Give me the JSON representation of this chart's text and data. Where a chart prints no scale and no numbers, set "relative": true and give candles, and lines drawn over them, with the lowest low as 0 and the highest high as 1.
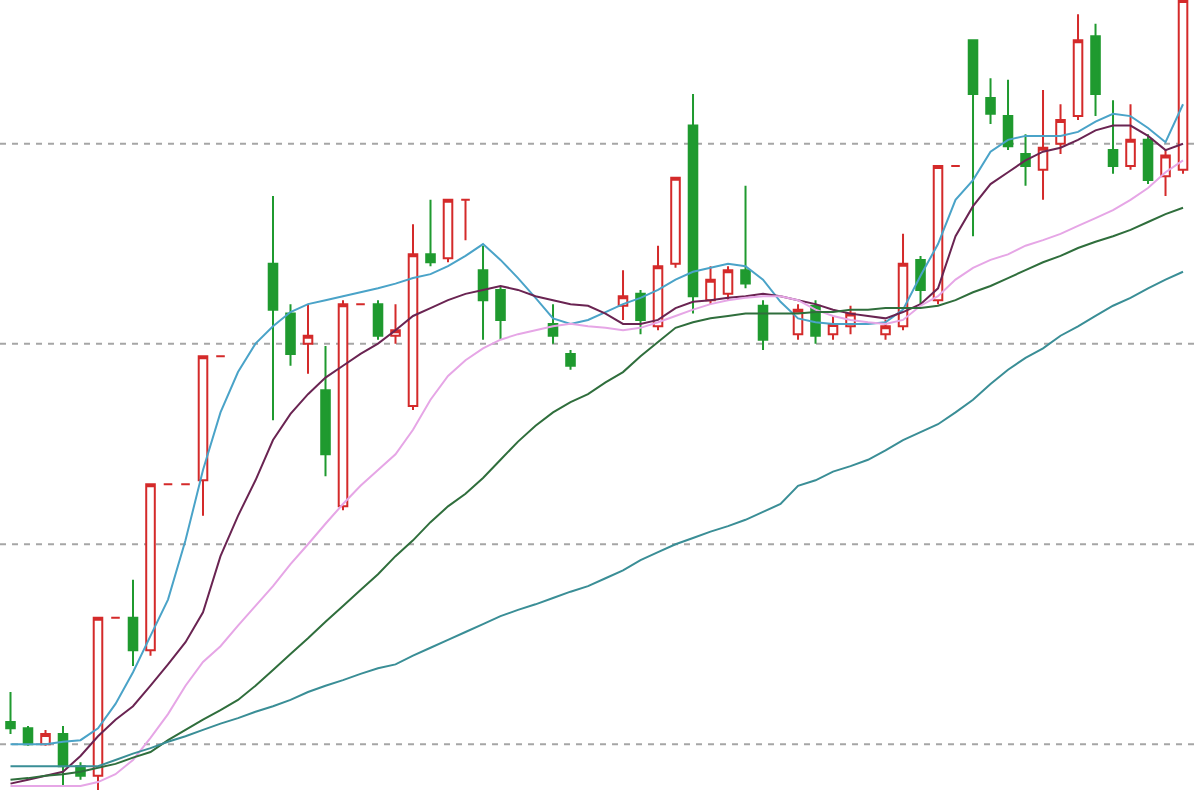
{
  "chart_data": {
    "type": "candlestick",
    "relative": true,
    "categories": [
      null,
      null,
      null,
      null,
      null,
      null,
      null,
      null,
      null,
      null,
      null,
      null,
      null,
      null,
      null,
      null,
      null,
      null,
      null,
      null,
      null,
      null,
      null,
      null,
      null,
      null,
      null,
      null,
      null,
      null,
      null,
      null,
      null,
      null,
      null,
      null,
      null,
      null,
      null,
      null,
      null,
      null,
      null,
      null,
      null,
      null,
      null,
      null,
      null,
      null,
      null,
      null,
      null,
      null,
      null,
      null,
      null,
      null,
      null,
      null,
      null,
      null,
      null,
      null,
      null,
      null,
      null,
      null
    ],
    "ohlc": [
      [
        0.086,
        0.124,
        0.071,
        0.078
      ],
      [
        0.078,
        0.081,
        0.056,
        0.058
      ],
      [
        0.058,
        0.076,
        0.056,
        0.071
      ],
      [
        0.071,
        0.081,
        0.005,
        0.03
      ],
      [
        0.03,
        0.035,
        0.013,
        0.018
      ],
      [
        0.018,
        0.218,
        0,
        0.218
      ],
      [
        0.218,
        0.218,
        0.218,
        0.218
      ],
      [
        0.218,
        0.266,
        0.157,
        0.177
      ],
      [
        0.177,
        0.387,
        0.17,
        0.387
      ],
      [
        0.387,
        0.387,
        0.387,
        0.387
      ],
      [
        0.387,
        0.387,
        0.387,
        0.387
      ],
      [
        0.392,
        0.549,
        0.347,
        0.549
      ],
      [
        0.549,
        0.549,
        0.549,
        0.549
      ],
      [
        null,
        null,
        null,
        null
      ],
      [
        null,
        null,
        null,
        null
      ],
      [
        0.666,
        0.752,
        0.468,
        0.608
      ],
      [
        0.603,
        0.615,
        0.537,
        0.552
      ],
      [
        0.565,
        0.615,
        0.527,
        0.575
      ],
      [
        0.506,
        0.562,
        0.397,
        0.425
      ],
      [
        0.359,
        0.62,
        0.354,
        0.615
      ],
      [
        0.615,
        0.615,
        0.615,
        0.615
      ],
      [
        0.615,
        0.62,
        0.57,
        0.575
      ],
      [
        0.575,
        0.615,
        0.565,
        0.582
      ],
      [
        0.486,
        0.716,
        0.481,
        0.678
      ],
      [
        0.678,
        0.747,
        0.663,
        0.668
      ],
      [
        0.673,
        0.747,
        0.668,
        0.747
      ],
      [
        0.747,
        0.747,
        0.696,
        0.747
      ],
      [
        0.658,
        0.689,
        0.57,
        0.62
      ],
      [
        0.633,
        0.638,
        0.57,
        0.595
      ],
      [
        null,
        null,
        null,
        null
      ],
      [
        null,
        null,
        null,
        null
      ],
      [
        0.59,
        0.615,
        0.565,
        0.575
      ],
      [
        0.552,
        0.557,
        0.532,
        0.537
      ],
      [
        null,
        null,
        null,
        null
      ],
      [
        null,
        null,
        null,
        null
      ],
      [
        0.613,
        0.658,
        0.595,
        0.625
      ],
      [
        0.628,
        0.633,
        0.577,
        0.595
      ],
      [
        0.587,
        0.689,
        0.582,
        0.663
      ],
      [
        0.666,
        0.775,
        0.661,
        0.775
      ],
      [
        0.841,
        0.881,
        0.603,
        0.625
      ],
      [
        0.62,
        0.663,
        0.615,
        0.646
      ],
      [
        0.628,
        0.663,
        0.62,
        0.658
      ],
      [
        0.658,
        0.765,
        0.635,
        0.641
      ],
      [
        0.613,
        0.62,
        0.557,
        0.57
      ],
      [
        null,
        null,
        null,
        null
      ],
      [
        0.577,
        0.615,
        0.57,
        0.608
      ],
      [
        0.613,
        0.62,
        0.565,
        0.575
      ],
      [
        0.577,
        0.6,
        0.57,
        0.59
      ],
      [
        0.587,
        0.613,
        0.577,
        0.603
      ],
      [
        null,
        null,
        null,
        null
      ],
      [
        0.577,
        0.595,
        0.57,
        0.587
      ],
      [
        0.587,
        0.704,
        0.582,
        0.666
      ],
      [
        0.671,
        0.676,
        0.613,
        0.633
      ],
      [
        0.62,
        0.79,
        0.615,
        0.79
      ],
      [
        0.79,
        0.79,
        0.79,
        0.79
      ],
      [
        0.949,
        0.949,
        0.701,
        0.881
      ],
      [
        0.876,
        0.901,
        0.843,
        0.856
      ],
      [
        0.853,
        0.899,
        0.81,
        0.815
      ],
      [
        0.805,
        0.83,
        0.765,
        0.79
      ],
      [
        0.785,
        0.886,
        0.747,
        0.813
      ],
      [
        0.818,
        0.868,
        0.805,
        0.848
      ],
      [
        0.853,
        0.982,
        0.848,
        0.949
      ],
      [
        0.954,
        0.97,
        0.853,
        0.881
      ],
      [
        0.81,
        0.873,
        0.78,
        0.79
      ],
      [
        0.79,
        0.868,
        0.785,
        0.823
      ],
      [
        0.823,
        0.83,
        0.767,
        0.772
      ],
      [
        0.777,
        0.81,
        0.752,
        0.803
      ],
      [
        0.785,
        1,
        0.78,
        1
      ]
    ],
    "series": [
      {
        "type": "line",
        "color": "#4aa3c8",
        "values": [
          0.058,
          0.058,
          0.058,
          0.061,
          0.063,
          0.078,
          0.109,
          0.149,
          0.195,
          0.241,
          0.316,
          0.405,
          0.478,
          0.529,
          0.565,
          0.587,
          0.605,
          0.615,
          0.62,
          0.625,
          0.63,
          0.635,
          0.641,
          0.648,
          0.653,
          0.663,
          0.676,
          0.691,
          0.671,
          0.648,
          0.623,
          0.597,
          0.59,
          0.595,
          0.605,
          0.615,
          0.623,
          0.633,
          0.646,
          0.656,
          0.661,
          0.666,
          0.663,
          0.646,
          0.618,
          0.597,
          0.592,
          0.59,
          0.59,
          0.59,
          0.592,
          0.608,
          0.651,
          0.691,
          0.747,
          0.772,
          0.808,
          0.823,
          0.828,
          0.828,
          0.828,
          0.833,
          0.846,
          0.856,
          0.853,
          0.838,
          0.82,
          0.868
        ]
      },
      {
        "type": "line",
        "color": "#6a2452",
        "values": [
          0.008,
          0.013,
          0.018,
          0.023,
          0.043,
          0.068,
          0.089,
          0.106,
          0.132,
          0.159,
          0.187,
          0.225,
          0.296,
          0.347,
          0.392,
          0.443,
          0.476,
          0.501,
          0.522,
          0.537,
          0.552,
          0.565,
          0.582,
          0.6,
          0.61,
          0.62,
          0.628,
          0.633,
          0.638,
          0.633,
          0.625,
          0.62,
          0.615,
          0.613,
          0.603,
          0.59,
          0.59,
          0.595,
          0.61,
          0.618,
          0.62,
          0.623,
          0.625,
          0.628,
          0.625,
          0.62,
          0.615,
          0.608,
          0.603,
          0.6,
          0.597,
          0.605,
          0.615,
          0.635,
          0.701,
          0.739,
          0.767,
          0.782,
          0.797,
          0.808,
          0.813,
          0.823,
          0.835,
          0.841,
          0.841,
          0.828,
          0.81,
          0.818
        ]
      },
      {
        "type": "line",
        "color": "#e6a6e6",
        "values": [
          0.005,
          0.005,
          0.005,
          0.005,
          0.005,
          0.01,
          0.02,
          0.038,
          0.066,
          0.096,
          0.132,
          0.162,
          0.182,
          0.208,
          0.233,
          0.258,
          0.286,
          0.311,
          0.337,
          0.362,
          0.385,
          0.405,
          0.425,
          0.456,
          0.494,
          0.524,
          0.544,
          0.559,
          0.57,
          0.577,
          0.582,
          0.587,
          0.59,
          0.587,
          0.585,
          0.582,
          0.585,
          0.592,
          0.6,
          0.608,
          0.615,
          0.62,
          0.623,
          0.625,
          0.625,
          0.62,
          0.608,
          0.6,
          0.595,
          0.592,
          0.59,
          0.595,
          0.613,
          0.625,
          0.646,
          0.661,
          0.671,
          0.678,
          0.689,
          0.696,
          0.704,
          0.714,
          0.724,
          0.734,
          0.747,
          0.762,
          0.782,
          0.797
        ]
      },
      {
        "type": "line",
        "color": "#2f6e3c",
        "values": [
          0.013,
          0.015,
          0.018,
          0.02,
          0.023,
          0.028,
          0.033,
          0.041,
          0.048,
          0.063,
          0.076,
          0.089,
          0.101,
          0.114,
          0.132,
          0.152,
          0.172,
          0.192,
          0.213,
          0.233,
          0.253,
          0.273,
          0.296,
          0.316,
          0.339,
          0.359,
          0.375,
          0.395,
          0.418,
          0.441,
          0.461,
          0.478,
          0.491,
          0.501,
          0.516,
          0.529,
          0.549,
          0.567,
          0.585,
          0.592,
          0.597,
          0.6,
          0.603,
          0.603,
          0.603,
          0.603,
          0.605,
          0.605,
          0.608,
          0.608,
          0.61,
          0.61,
          0.61,
          0.613,
          0.62,
          0.63,
          0.638,
          0.648,
          0.658,
          0.668,
          0.676,
          0.686,
          0.694,
          0.701,
          0.709,
          0.719,
          0.729,
          0.737
        ]
      },
      {
        "type": "line",
        "color": "#3a8e96",
        "values": [
          0.03,
          0.03,
          0.03,
          0.03,
          0.03,
          0.03,
          0.038,
          0.046,
          0.053,
          0.061,
          0.068,
          0.076,
          0.084,
          0.091,
          0.099,
          0.106,
          0.114,
          0.124,
          0.132,
          0.139,
          0.147,
          0.154,
          0.159,
          0.17,
          0.18,
          0.19,
          0.2,
          0.21,
          0.22,
          0.228,
          0.235,
          0.243,
          0.251,
          0.258,
          0.268,
          0.278,
          0.291,
          0.301,
          0.311,
          0.319,
          0.327,
          0.334,
          0.342,
          0.352,
          0.362,
          0.385,
          0.392,
          0.403,
          0.41,
          0.418,
          0.43,
          0.443,
          0.453,
          0.463,
          0.478,
          0.494,
          0.514,
          0.532,
          0.547,
          0.559,
          0.575,
          0.587,
          0.6,
          0.613,
          0.623,
          0.635,
          0.646,
          0.656
        ]
      }
    ],
    "ref_lines": [
      {
        "axis": "y",
        "value": 0.818,
        "color": "#a6a6a6",
        "line_style": "dotted"
      },
      {
        "axis": "y",
        "value": 0.565,
        "color": "#a6a6a6",
        "line_style": "dotted"
      },
      {
        "axis": "y",
        "value": 0.311,
        "color": "#a6a6a6",
        "line_style": "dotted"
      },
      {
        "axis": "y",
        "value": 0.058,
        "color": "#a6a6a6",
        "line_style": "dotted"
      }
    ]
  }
}
